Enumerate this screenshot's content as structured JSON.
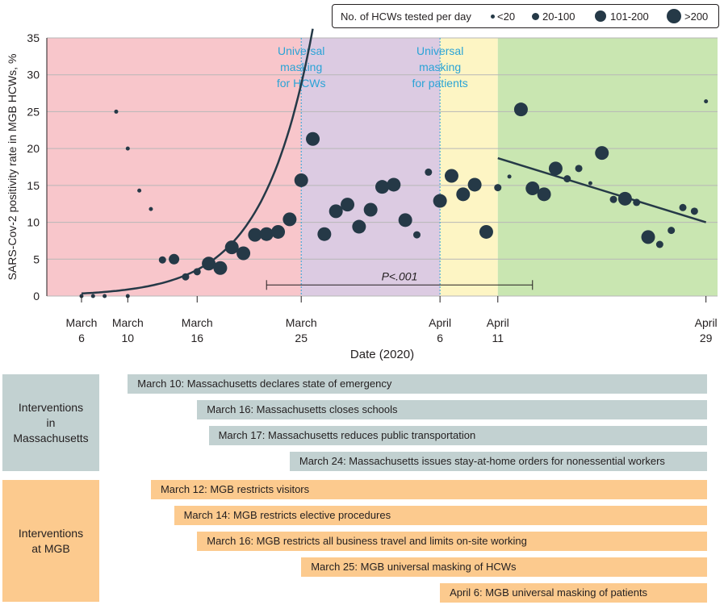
{
  "chart_data": {
    "type": "scatter",
    "ylabel": "SARS-Cov-2 positivity rate in MGB HCWs, %",
    "xlabel": "Date (2020)",
    "ylim": [
      0,
      35
    ],
    "yticks": [
      0,
      5,
      10,
      15,
      20,
      25,
      30,
      35
    ],
    "xlim_days": [
      3,
      61
    ],
    "grid": "horizontal",
    "xticks": [
      {
        "day": 6,
        "line1": "March",
        "line2": "6"
      },
      {
        "day": 10,
        "line1": "March",
        "line2": "10"
      },
      {
        "day": 16,
        "line1": "March",
        "line2": "16"
      },
      {
        "day": 25,
        "line1": "March",
        "line2": "25"
      },
      {
        "day": 37,
        "line1": "April",
        "line2": "6"
      },
      {
        "day": 42,
        "line1": "April",
        "line2": "11"
      },
      {
        "day": 60,
        "line1": "April",
        "line2": "29"
      }
    ],
    "phases": [
      {
        "from": 3,
        "to": 25,
        "color": "#f8c6cb"
      },
      {
        "from": 25,
        "to": 37,
        "color": "#dccbe2"
      },
      {
        "from": 37,
        "to": 42,
        "color": "#fdf5c4"
      },
      {
        "from": 42,
        "to": 61,
        "color": "#c9e6b1"
      }
    ],
    "annotations": [
      {
        "day": 25,
        "line1": "Universal",
        "line2": "masking",
        "line3": "for HCWs"
      },
      {
        "day": 37,
        "line1": "Universal",
        "line2": "masking",
        "line3": "for patients"
      }
    ],
    "pvalue": {
      "label": "P<.001",
      "from": 22,
      "to": 45,
      "y": 1.5
    },
    "legend": {
      "title": "No. of HCWs tested per day",
      "entries": [
        {
          "label": "<20",
          "size": 1
        },
        {
          "label": "20-100",
          "size": 2
        },
        {
          "label": "101-200",
          "size": 3
        },
        {
          "label": ">200",
          "size": 4
        }
      ]
    },
    "trend_pre": {
      "a": 0.35,
      "b": 0.232,
      "start": 6,
      "end": 26
    },
    "trend_post": {
      "start": 42,
      "end": 60,
      "y_start": 18.7,
      "y_end": 10.0
    },
    "points": [
      {
        "day": 6,
        "y": 0,
        "size": 1
      },
      {
        "day": 7,
        "y": 0,
        "size": 1
      },
      {
        "day": 8,
        "y": 0,
        "size": 1
      },
      {
        "day": 9,
        "y": 25,
        "size": 1
      },
      {
        "day": 10,
        "y": 20,
        "size": 1
      },
      {
        "day": 10,
        "y": 0,
        "size": 1
      },
      {
        "day": 11,
        "y": 14.3,
        "size": 1
      },
      {
        "day": 12,
        "y": 11.8,
        "size": 1
      },
      {
        "day": 13,
        "y": 4.9,
        "size": 2
      },
      {
        "day": 14,
        "y": 5,
        "size": 3
      },
      {
        "day": 15,
        "y": 2.6,
        "size": 2
      },
      {
        "day": 16,
        "y": 3.3,
        "size": 2
      },
      {
        "day": 17,
        "y": 4.4,
        "size": 4
      },
      {
        "day": 18,
        "y": 3.8,
        "size": 4
      },
      {
        "day": 19,
        "y": 6.6,
        "size": 4
      },
      {
        "day": 20,
        "y": 5.8,
        "size": 4
      },
      {
        "day": 21,
        "y": 8.3,
        "size": 4
      },
      {
        "day": 22,
        "y": 8.4,
        "size": 4
      },
      {
        "day": 23,
        "y": 8.7,
        "size": 4
      },
      {
        "day": 24,
        "y": 10.4,
        "size": 4
      },
      {
        "day": 25,
        "y": 15.7,
        "size": 4
      },
      {
        "day": 26,
        "y": 21.3,
        "size": 4
      },
      {
        "day": 27,
        "y": 8.4,
        "size": 4
      },
      {
        "day": 28,
        "y": 11.5,
        "size": 4
      },
      {
        "day": 29,
        "y": 12.4,
        "size": 4
      },
      {
        "day": 30,
        "y": 9.4,
        "size": 4
      },
      {
        "day": 31,
        "y": 11.7,
        "size": 4
      },
      {
        "day": 32,
        "y": 14.8,
        "size": 4
      },
      {
        "day": 33,
        "y": 15.1,
        "size": 4
      },
      {
        "day": 34,
        "y": 10.3,
        "size": 4
      },
      {
        "day": 35,
        "y": 8.3,
        "size": 2
      },
      {
        "day": 36,
        "y": 16.8,
        "size": 2
      },
      {
        "day": 37,
        "y": 12.9,
        "size": 4
      },
      {
        "day": 38,
        "y": 16.3,
        "size": 4
      },
      {
        "day": 39,
        "y": 13.8,
        "size": 4
      },
      {
        "day": 40,
        "y": 15.1,
        "size": 4
      },
      {
        "day": 41,
        "y": 8.7,
        "size": 4
      },
      {
        "day": 42,
        "y": 14.7,
        "size": 2
      },
      {
        "day": 43,
        "y": 16.2,
        "size": 1
      },
      {
        "day": 44,
        "y": 25.3,
        "size": 4
      },
      {
        "day": 45,
        "y": 14.6,
        "size": 4
      },
      {
        "day": 46,
        "y": 13.8,
        "size": 4
      },
      {
        "day": 47,
        "y": 17.3,
        "size": 4
      },
      {
        "day": 48,
        "y": 15.9,
        "size": 2
      },
      {
        "day": 49,
        "y": 17.3,
        "size": 2
      },
      {
        "day": 50,
        "y": 15.3,
        "size": 1
      },
      {
        "day": 51,
        "y": 19.4,
        "size": 4
      },
      {
        "day": 52,
        "y": 13.1,
        "size": 2
      },
      {
        "day": 53,
        "y": 13.2,
        "size": 4
      },
      {
        "day": 54,
        "y": 12.7,
        "size": 2
      },
      {
        "day": 55,
        "y": 8.0,
        "size": 4
      },
      {
        "day": 56,
        "y": 7.0,
        "size": 2
      },
      {
        "day": 57,
        "y": 8.9,
        "size": 2
      },
      {
        "day": 58,
        "y": 12.0,
        "size": 2
      },
      {
        "day": 59,
        "y": 11.5,
        "size": 2
      },
      {
        "day": 60,
        "y": 26.4,
        "size": 1
      }
    ],
    "colors": {
      "dot": "#253947",
      "trend": "#253947",
      "grid": "#b7b7b7",
      "dash": "#2aa3d6",
      "annotation": "#2aa3d6"
    }
  },
  "interventions": {
    "massachusetts": {
      "label_lines": [
        "Interventions",
        "in",
        "Massachusetts"
      ],
      "items": [
        {
          "day": 10,
          "text": "March 10: Massachusetts declares state of emergency"
        },
        {
          "day": 16,
          "text": "March 16: Massachusetts closes schools"
        },
        {
          "day": 17,
          "text": "March 17: Massachusetts reduces public transportation"
        },
        {
          "day": 24,
          "text": "March 24: Massachusetts issues stay-at-home orders for nonessential workers"
        }
      ],
      "colors": {
        "box": "#c2d1d1"
      }
    },
    "mgb": {
      "label_lines": [
        "Interventions",
        "at MGB"
      ],
      "items": [
        {
          "day": 12,
          "text": "March 12: MGB restricts visitors"
        },
        {
          "day": 14,
          "text": "March 14: MGB restricts elective procedures"
        },
        {
          "day": 16,
          "text": "March 16: MGB restricts all business travel and limits on-site working"
        },
        {
          "day": 25,
          "text": "March 25: MGB universal masking of HCWs"
        },
        {
          "day": 37,
          "text": "April 6: MGB universal masking of patients"
        }
      ],
      "colors": {
        "box": "#fcca8e"
      }
    }
  }
}
